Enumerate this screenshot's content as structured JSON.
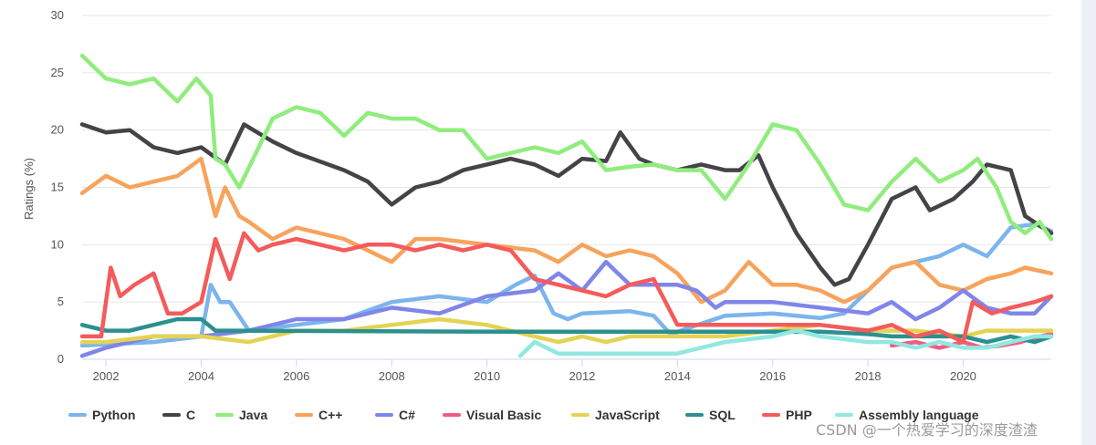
{
  "chart_data": {
    "type": "line",
    "title": "",
    "xlabel": "",
    "ylabel": "Ratings (%)",
    "xlim": [
      2001.5,
      2021.85
    ],
    "ylim": [
      0,
      30
    ],
    "yticks": [
      0,
      5,
      10,
      15,
      20,
      25,
      30
    ],
    "xticks": [
      2002,
      2004,
      2006,
      2008,
      2010,
      2012,
      2014,
      2016,
      2018,
      2020
    ],
    "grid": true,
    "legend_position": "bottom",
    "series": [
      {
        "name": "Python",
        "color": "#7cb5ec",
        "x": [
          2001.5,
          2003,
          2004,
          2004.2,
          2004.4,
          2004.6,
          2005,
          2006,
          2007,
          2008,
          2009,
          2010,
          2010.6,
          2011,
          2011.4,
          2011.7,
          2012,
          2013,
          2013.5,
          2013.9,
          2014,
          2015,
          2016,
          2017,
          2017.5,
          2018,
          2018.5,
          2019,
          2019.5,
          2020,
          2020.5,
          2021,
          2021.5,
          2021.85
        ],
        "y": [
          1.2,
          1.5,
          2,
          6.5,
          5,
          5,
          2.5,
          3,
          3.5,
          5,
          5.5,
          5,
          6.5,
          7.3,
          4,
          3.5,
          4,
          4.2,
          3.8,
          2,
          2.4,
          3.8,
          4,
          3.6,
          4,
          6,
          8,
          8.5,
          9,
          10,
          9,
          11.5,
          11.8,
          11.2
        ]
      },
      {
        "name": "C",
        "color": "#434348",
        "x": [
          2001.5,
          2002,
          2002.5,
          2003,
          2003.5,
          2004,
          2004.5,
          2004.9,
          2005.5,
          2006,
          2007,
          2007.5,
          2008,
          2008.5,
          2009,
          2009.5,
          2010,
          2010.5,
          2011,
          2011.5,
          2012,
          2012.5,
          2012.8,
          2013.2,
          2013.5,
          2014,
          2014.5,
          2015,
          2015.3,
          2015.7,
          2016,
          2016.5,
          2017,
          2017.3,
          2017.6,
          2018,
          2018.5,
          2019,
          2019.3,
          2019.8,
          2020.2,
          2020.5,
          2021,
          2021.3,
          2021.85
        ],
        "y": [
          20.5,
          19.8,
          20,
          18.5,
          18,
          18.5,
          17,
          20.5,
          19,
          18,
          16.5,
          15.5,
          13.5,
          15,
          15.5,
          16.5,
          17,
          17.5,
          17,
          16,
          17.5,
          17.3,
          19.8,
          17.5,
          17,
          16.5,
          17,
          16.5,
          16.5,
          17.8,
          15,
          11,
          8,
          6.5,
          7,
          10,
          14,
          15,
          13,
          14,
          15.5,
          17,
          16.5,
          12.5,
          11
        ]
      },
      {
        "name": "Java",
        "color": "#90ed7d",
        "x": [
          2001.5,
          2002,
          2002.5,
          2003,
          2003.5,
          2003.9,
          2004.2,
          2004.3,
          2004.5,
          2004.8,
          2005.5,
          2006,
          2006.5,
          2007,
          2007.5,
          2008,
          2008.5,
          2009,
          2009.5,
          2010,
          2010.5,
          2011,
          2011.5,
          2012,
          2012.5,
          2013,
          2013.5,
          2014,
          2014.5,
          2015,
          2015.5,
          2016,
          2016.5,
          2017,
          2017.5,
          2018,
          2018.5,
          2019,
          2019.5,
          2020,
          2020.3,
          2020.7,
          2021,
          2021.3,
          2021.6,
          2021.85
        ],
        "y": [
          26.5,
          24.5,
          24,
          24.5,
          22.5,
          24.5,
          23,
          17.5,
          17,
          15,
          21,
          22,
          21.5,
          19.5,
          21.5,
          21,
          21,
          20,
          20,
          17.5,
          18,
          18.5,
          18,
          19,
          16.5,
          16.8,
          17,
          16.5,
          16.5,
          14,
          17,
          20.5,
          20,
          17,
          13.5,
          13,
          15.5,
          17.5,
          15.5,
          16.5,
          17.5,
          15,
          12,
          11,
          12,
          10.5
        ]
      },
      {
        "name": "C++",
        "color": "#f7a35c",
        "x": [
          2001.5,
          2002,
          2002.5,
          2003,
          2003.5,
          2004,
          2004.3,
          2004.5,
          2004.8,
          2005,
          2005.5,
          2006,
          2007,
          2008,
          2008.5,
          2009,
          2010,
          2011,
          2011.5,
          2012,
          2012.5,
          2013,
          2013.5,
          2014,
          2014.5,
          2015,
          2015.5,
          2016,
          2016.5,
          2017,
          2017.5,
          2018,
          2018.5,
          2019,
          2019.5,
          2020,
          2020.5,
          2021,
          2021.3,
          2021.85
        ],
        "y": [
          14.5,
          16,
          15,
          15.5,
          16,
          17.5,
          12.5,
          15,
          12.5,
          12,
          10.5,
          11.5,
          10.5,
          8.5,
          10.5,
          10.5,
          10,
          9.5,
          8.5,
          10,
          9,
          9.5,
          9,
          7.5,
          5,
          6,
          8.5,
          6.5,
          6.5,
          6,
          5,
          6,
          8,
          8.5,
          6.5,
          6,
          7,
          7.5,
          8,
          7.5
        ]
      },
      {
        "name": "C#",
        "color": "#8085e9",
        "x": [
          2001.5,
          2002,
          2003,
          2004,
          2005,
          2006,
          2007,
          2008,
          2009,
          2010,
          2011,
          2011.5,
          2012,
          2012.5,
          2013,
          2014,
          2014.4,
          2014.8,
          2015,
          2016,
          2017,
          2018,
          2018.5,
          2019,
          2019.5,
          2020,
          2020.5,
          2021,
          2021.5,
          2021.85
        ],
        "y": [
          0.3,
          1,
          2,
          2,
          2.5,
          3.5,
          3.5,
          4.5,
          4,
          5.5,
          6,
          7.5,
          6,
          8.5,
          6.5,
          6.5,
          6,
          4.5,
          5,
          5,
          4.5,
          4,
          5,
          3.5,
          4.5,
          6,
          4.5,
          4,
          4,
          5.5
        ]
      },
      {
        "name": "Visual Basic",
        "color": "#f15c80",
        "x": [
          2018.5,
          2019,
          2019.5,
          2020,
          2020.4,
          2020.8,
          2021.2,
          2021.6,
          2021.85
        ],
        "y": [
          1.2,
          1.5,
          1,
          1.5,
          1,
          1.2,
          1.5,
          2,
          2.2
        ]
      },
      {
        "name": "JavaScript",
        "color": "#e4d354",
        "x": [
          2001.5,
          2002,
          2003,
          2004,
          2005,
          2006,
          2007,
          2008,
          2009,
          2010,
          2011,
          2011.5,
          2012,
          2012.5,
          2013,
          2014,
          2015,
          2016,
          2017,
          2018,
          2019,
          2020,
          2020.5,
          2021,
          2021.5,
          2021.85
        ],
        "y": [
          1.5,
          1.5,
          2,
          2,
          1.5,
          2.5,
          2.5,
          3,
          3.5,
          3,
          2,
          1.5,
          2,
          1.5,
          2,
          2,
          2,
          2.5,
          3,
          2.5,
          2.5,
          2,
          2.5,
          2.5,
          2.5,
          2.5
        ]
      },
      {
        "name": "SQL",
        "color": "#2b908f",
        "x": [
          2001.5,
          2002,
          2002.5,
          2003,
          2003.5,
          2004,
          2004.3,
          2010.5,
          2014,
          2017,
          2018,
          2018.5,
          2019,
          2019.5,
          2020,
          2020.5,
          2021,
          2021.5,
          2021.85
        ],
        "y": [
          3,
          2.5,
          2.5,
          3,
          3.5,
          3.5,
          2.5,
          2.4,
          2.4,
          2.4,
          2.2,
          2,
          2,
          2,
          2,
          1.5,
          2,
          1.5,
          2
        ]
      },
      {
        "name": "PHP",
        "color": "#f45b5b",
        "x": [
          2001.5,
          2001.9,
          2002.1,
          2002.3,
          2002.6,
          2003,
          2003.3,
          2003.6,
          2004,
          2004.3,
          2004.6,
          2004.9,
          2005.2,
          2005.5,
          2006,
          2006.5,
          2007,
          2007.5,
          2008,
          2008.5,
          2009,
          2009.5,
          2010,
          2010.5,
          2011,
          2011.5,
          2012,
          2012.5,
          2013,
          2013.5,
          2014,
          2014.5,
          2015,
          2016,
          2017,
          2018,
          2018.5,
          2019,
          2019.5,
          2020,
          2020.2,
          2020.6,
          2021,
          2021.5,
          2021.85
        ],
        "y": [
          2,
          2,
          8,
          5.5,
          6.5,
          7.5,
          4,
          4,
          5,
          10.5,
          7,
          11,
          9.5,
          10,
          10.5,
          10,
          9.5,
          10,
          10,
          9.5,
          10,
          9.5,
          10,
          9.5,
          7,
          6.5,
          6,
          5.5,
          6.5,
          7,
          3,
          3,
          3,
          3,
          3,
          2.5,
          3,
          2,
          2.5,
          1.5,
          5,
          4,
          4.5,
          5,
          5.5
        ]
      },
      {
        "name": "Assembly language",
        "color": "#91e8e1",
        "x": [
          2010.7,
          2011,
          2011.5,
          2012,
          2013,
          2014,
          2015,
          2016,
          2016.5,
          2017,
          2018,
          2018.5,
          2019,
          2019.5,
          2020,
          2020.5,
          2021,
          2021.5,
          2021.85
        ],
        "y": [
          0.3,
          1.5,
          0.5,
          0.5,
          0.5,
          0.5,
          1.5,
          2,
          2.5,
          2,
          1.5,
          1.5,
          1,
          1.5,
          1,
          1,
          1.5,
          2,
          2
        ]
      }
    ]
  }
}
